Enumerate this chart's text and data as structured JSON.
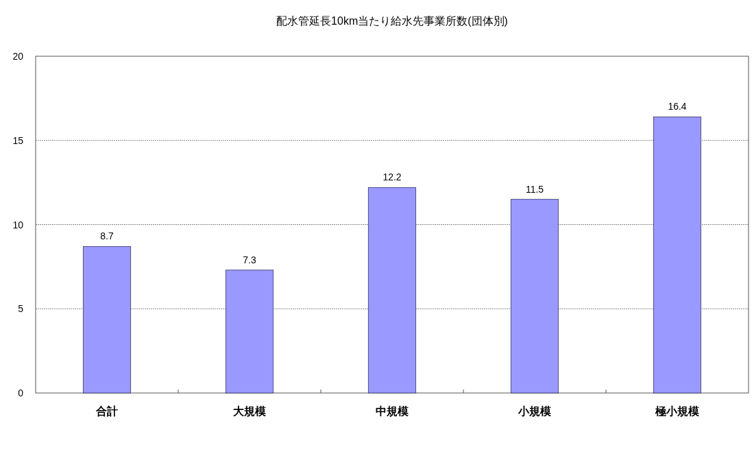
{
  "chart_data": {
    "type": "bar",
    "title": "配水管延長10km当たり給水先事業所数(団体別)",
    "categories": [
      "合計",
      "大規模",
      "中規模",
      "小規模",
      "極小規模"
    ],
    "values": [
      8.7,
      7.3,
      12.2,
      11.5,
      16.4
    ],
    "color": "#9999ff",
    "ylim": [
      0,
      20
    ],
    "yticks": [
      0,
      5,
      10,
      15,
      20
    ],
    "grid": "y",
    "data_labels": true
  }
}
